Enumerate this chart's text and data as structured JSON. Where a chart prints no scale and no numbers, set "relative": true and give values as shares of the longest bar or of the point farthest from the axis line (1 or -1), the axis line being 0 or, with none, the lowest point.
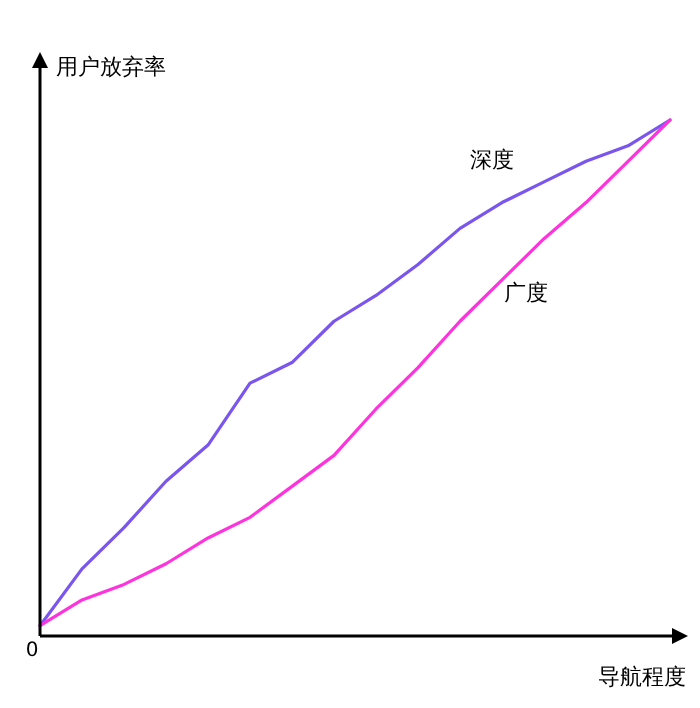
{
  "chart_data": {
    "type": "line",
    "relative": true,
    "xlabel": "导航程度",
    "ylabel": "用户放弃率",
    "annotations": [
      "0"
    ],
    "categories": [
      null,
      null,
      null,
      null,
      null,
      null,
      null,
      null,
      null,
      null,
      null,
      null,
      null,
      null,
      null,
      null
    ],
    "grid": false,
    "marker": "none",
    "line_style": "solid",
    "series": [
      {
        "name": "深度",
        "color": "#7a55ee",
        "values": [
          0.02,
          0.13,
          0.21,
          0.3,
          0.37,
          0.49,
          0.53,
          0.61,
          0.66,
          0.72,
          0.79,
          0.84,
          0.88,
          0.92,
          0.95,
          1
        ]
      },
      {
        "name": "广度",
        "color": "#ff33dd",
        "values": [
          0.02,
          0.07,
          0.1,
          0.14,
          0.19,
          0.23,
          0.29,
          0.35,
          0.44,
          0.52,
          0.61,
          0.69,
          0.77,
          0.84,
          0.92,
          1
        ]
      }
    ]
  }
}
